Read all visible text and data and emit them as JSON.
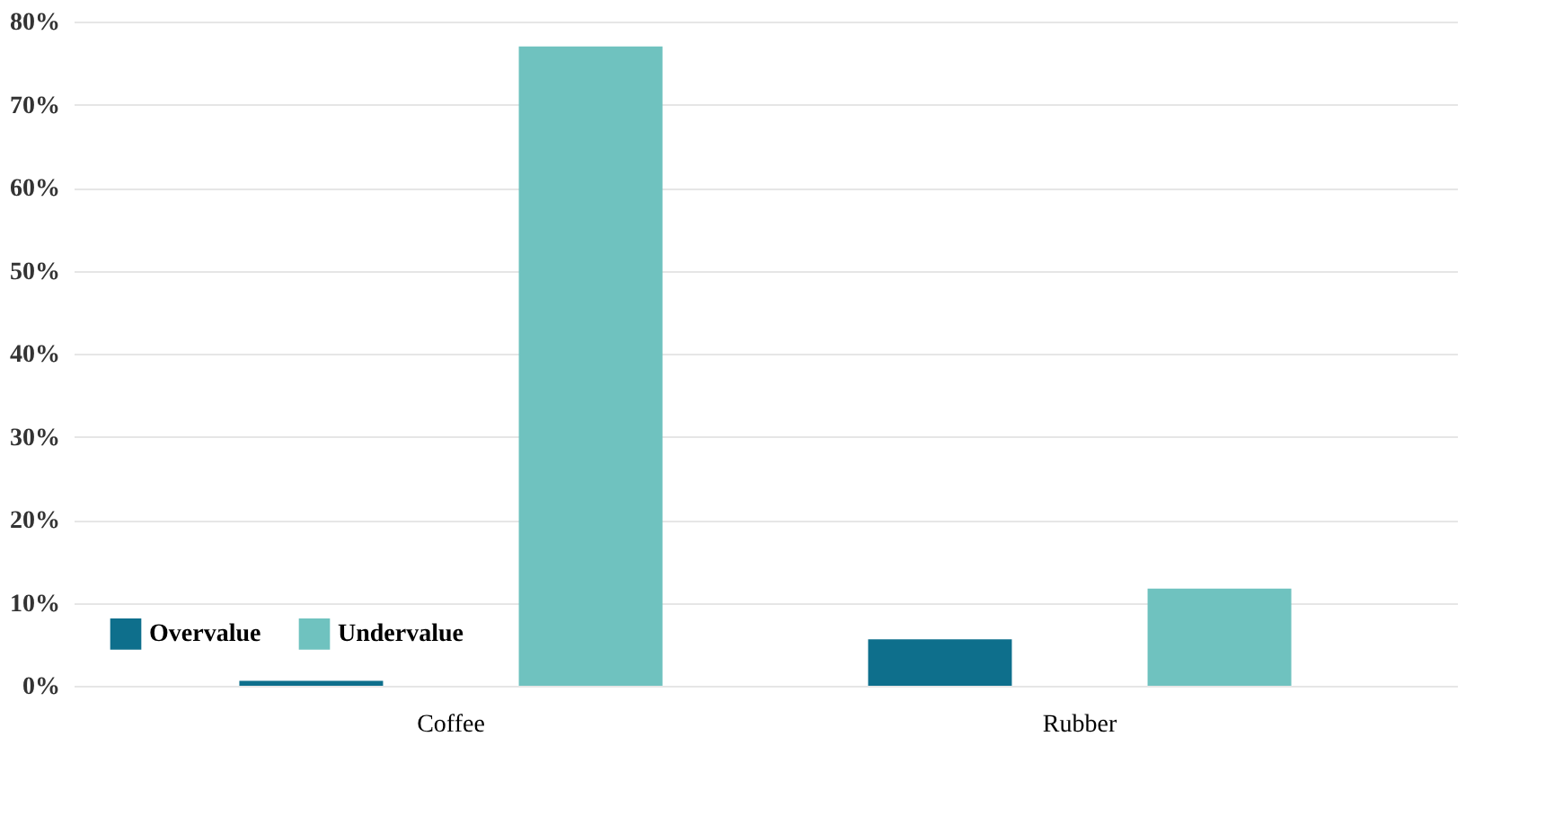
{
  "chart_data": {
    "type": "bar",
    "categories": [
      "Coffee",
      "Rubber"
    ],
    "series": [
      {
        "name": "Overvalue",
        "color": "#0e6f8c",
        "values": [
          0.6,
          5.6
        ]
      },
      {
        "name": "Undervalue",
        "color": "#6fc2bf",
        "values": [
          77.0,
          11.7
        ]
      }
    ],
    "ylim": [
      0,
      80
    ],
    "yticks": [
      {
        "value": 0,
        "label": "0%"
      },
      {
        "value": 10,
        "label": "10%"
      },
      {
        "value": 20,
        "label": "20%"
      },
      {
        "value": 30,
        "label": "30%"
      },
      {
        "value": 40,
        "label": "40%"
      },
      {
        "value": 50,
        "label": "50%"
      },
      {
        "value": 60,
        "label": "60%"
      },
      {
        "value": 70,
        "label": "70%"
      },
      {
        "value": 80,
        "label": "80%"
      }
    ],
    "grid": "y",
    "legend": "bottom left"
  }
}
